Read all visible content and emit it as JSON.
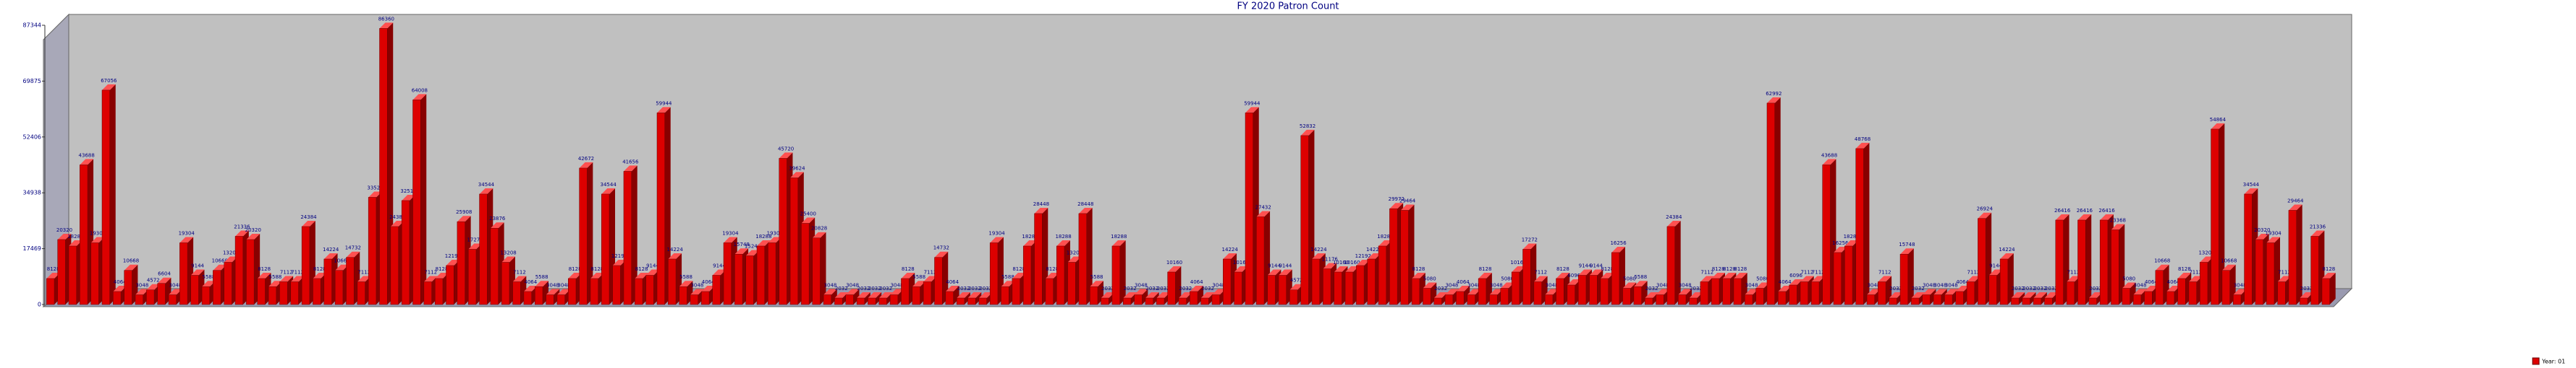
{
  "chart_data": {
    "type": "bar",
    "title": "FY 2020 Patron Count",
    "series": [
      {
        "name": "Year: 01",
        "color": "#dd0000",
        "values": [
          8128,
          20320,
          18288,
          43688,
          19304,
          67056,
          4064,
          10668,
          3048,
          4572,
          6604,
          3048,
          19304,
          9144,
          5588,
          10668,
          13208,
          21336,
          20320,
          8128,
          5588,
          7112,
          7112,
          24384,
          8128,
          14224,
          10668,
          14732,
          7112,
          33528,
          86360,
          24384,
          32512,
          64008,
          7112,
          8128,
          12192,
          25908,
          17272,
          34544,
          23876,
          13208,
          7112,
          4064,
          5588,
          3048,
          3048,
          8128,
          42672,
          8128,
          34544,
          12192,
          41656,
          8128,
          9144,
          59944,
          14224,
          5588,
          3048,
          4064,
          9144,
          19304,
          15748,
          15240,
          18288,
          19304,
          45720,
          39624,
          25400,
          20828,
          3048,
          2032,
          3048,
          2032,
          2032,
          2032,
          3048,
          8128,
          5588,
          7112,
          14732,
          4064,
          2032,
          2032,
          2032,
          19304,
          5588,
          8128,
          18288,
          28448,
          8128,
          18288,
          13208,
          28448,
          5588,
          2032,
          18288,
          2032,
          3048,
          2032,
          2032,
          10160,
          2032,
          4064,
          2032,
          3048,
          14224,
          10160,
          59944,
          27432,
          9144,
          9144,
          4572,
          52832,
          14224,
          11176,
          10160,
          10160,
          12192,
          14224,
          18288,
          29972,
          29464,
          8128,
          5080,
          2032,
          3048,
          4064,
          3048,
          8128,
          3048,
          5080,
          10160,
          17272,
          7112,
          3048,
          8128,
          6096,
          9144,
          9144,
          8128,
          16256,
          5080,
          5588,
          2032,
          3048,
          24384,
          3048,
          2032,
          7112,
          8128,
          8128,
          8128,
          3048,
          5080,
          62992,
          4064,
          6096,
          7112,
          7112,
          43688,
          16256,
          18288,
          48768,
          3048,
          7112,
          2032,
          15748,
          2032,
          3048,
          3048,
          3048,
          4064,
          7112,
          26924,
          9144,
          14224,
          2032,
          2032,
          2032,
          2032,
          26416,
          7112,
          26416,
          2032,
          26416,
          23368,
          5080,
          3048,
          4064,
          10668,
          4064,
          8128,
          7112,
          13208,
          54864,
          10668,
          3048,
          34544,
          20320,
          19304,
          7112,
          29464,
          2032,
          21336,
          8128
        ]
      }
    ],
    "ylim": [
      0,
      87344
    ],
    "yticks": [
      0,
      17469,
      34938,
      52406,
      69875,
      87344
    ],
    "grid": false,
    "legend": "bottom-right"
  }
}
